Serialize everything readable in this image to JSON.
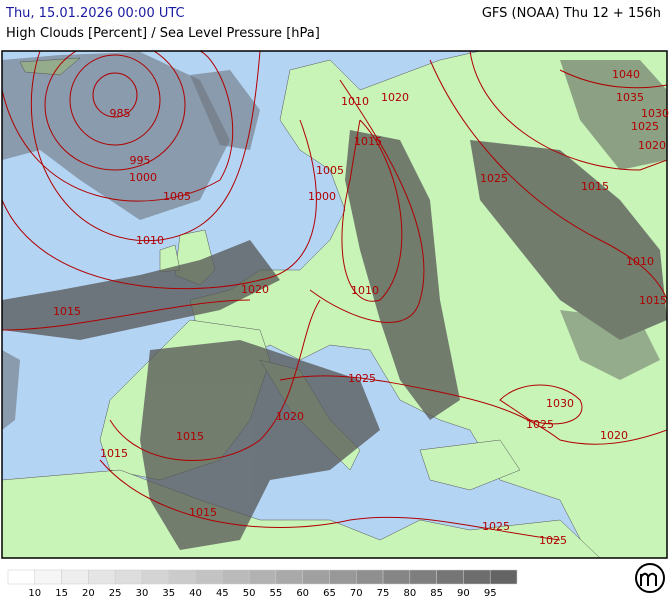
{
  "header": {
    "datetime": "Thu, 15.01.2026 00:00 UTC",
    "model": "GFS (NOAA) Thu 12 + 156h",
    "title": "High Clouds [Percent] / Sea Level Pressure [hPa]"
  },
  "isobar_labels": [
    "985",
    "995",
    "1000",
    "1005",
    "1010",
    "1015",
    "1020",
    "1010",
    "1015",
    "1005",
    "1000",
    "1010",
    "1020",
    "1025",
    "1040",
    "1035",
    "1030",
    "1025",
    "1020",
    "1015",
    "1010",
    "1015",
    "1025",
    "1030",
    "1025",
    "1020",
    "1020",
    "1015",
    "1015",
    "1015",
    "1025",
    "1025"
  ],
  "legend": {
    "labels": [
      "10",
      "15",
      "20",
      "25",
      "30",
      "35",
      "40",
      "45",
      "50",
      "55",
      "60",
      "65",
      "70",
      "75",
      "80",
      "85",
      "90",
      "95"
    ]
  }
}
